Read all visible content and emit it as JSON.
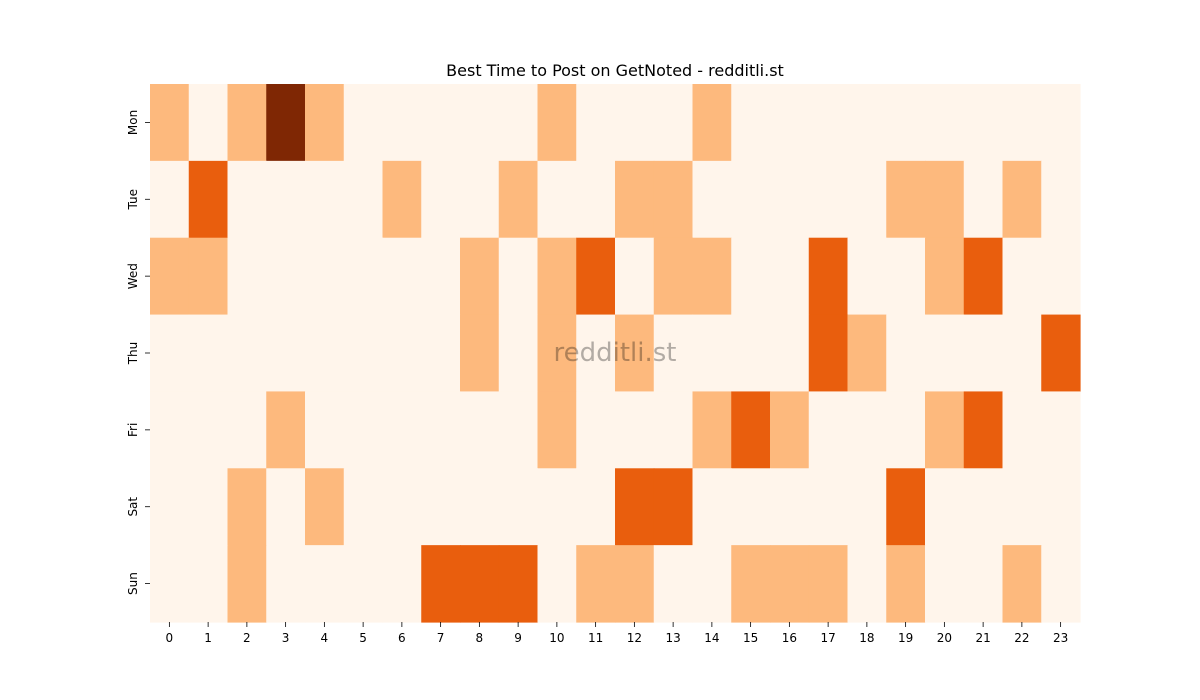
{
  "chart_data": {
    "type": "heatmap",
    "title": "Best Time to Post on GetNoted - redditli.st",
    "watermark": "redditli.st",
    "xlabel": "",
    "ylabel": "",
    "x": [
      "0",
      "1",
      "2",
      "3",
      "4",
      "5",
      "6",
      "7",
      "8",
      "9",
      "10",
      "11",
      "12",
      "13",
      "14",
      "15",
      "16",
      "17",
      "18",
      "19",
      "20",
      "21",
      "22",
      "23"
    ],
    "y": [
      "Mon",
      "Tue",
      "Wed",
      "Thu",
      "Fri",
      "Sat",
      "Sun"
    ],
    "values": [
      [
        1,
        0,
        1,
        3,
        1,
        0,
        0,
        0,
        0,
        0,
        1,
        0,
        0,
        0,
        1,
        0,
        0,
        0,
        0,
        0,
        0,
        0,
        0,
        0
      ],
      [
        0,
        2,
        0,
        0,
        0,
        0,
        1,
        0,
        0,
        1,
        0,
        0,
        1,
        1,
        0,
        0,
        0,
        0,
        0,
        1,
        1,
        0,
        1,
        0
      ],
      [
        1,
        1,
        0,
        0,
        0,
        0,
        0,
        0,
        1,
        0,
        1,
        2,
        0,
        1,
        1,
        0,
        0,
        2,
        0,
        0,
        1,
        2,
        0,
        0
      ],
      [
        0,
        0,
        0,
        0,
        0,
        0,
        0,
        0,
        1,
        0,
        1,
        0,
        1,
        0,
        0,
        0,
        0,
        2,
        1,
        0,
        0,
        0,
        0,
        2
      ],
      [
        0,
        0,
        0,
        1,
        0,
        0,
        0,
        0,
        0,
        0,
        1,
        0,
        0,
        0,
        1,
        2,
        1,
        0,
        0,
        0,
        1,
        2,
        0,
        0
      ],
      [
        0,
        0,
        1,
        0,
        1,
        0,
        0,
        0,
        0,
        0,
        0,
        0,
        2,
        2,
        0,
        0,
        0,
        0,
        0,
        2,
        0,
        0,
        0,
        0
      ],
      [
        0,
        0,
        1,
        0,
        0,
        0,
        0,
        2,
        2,
        2,
        0,
        1,
        1,
        0,
        0,
        1,
        1,
        1,
        0,
        1,
        0,
        0,
        1,
        0
      ]
    ],
    "colorscale": [
      "#fff5eb",
      "#fdb97d",
      "#e95e0d",
      "#7f2704"
    ],
    "colorbar": false,
    "grid": false
  }
}
